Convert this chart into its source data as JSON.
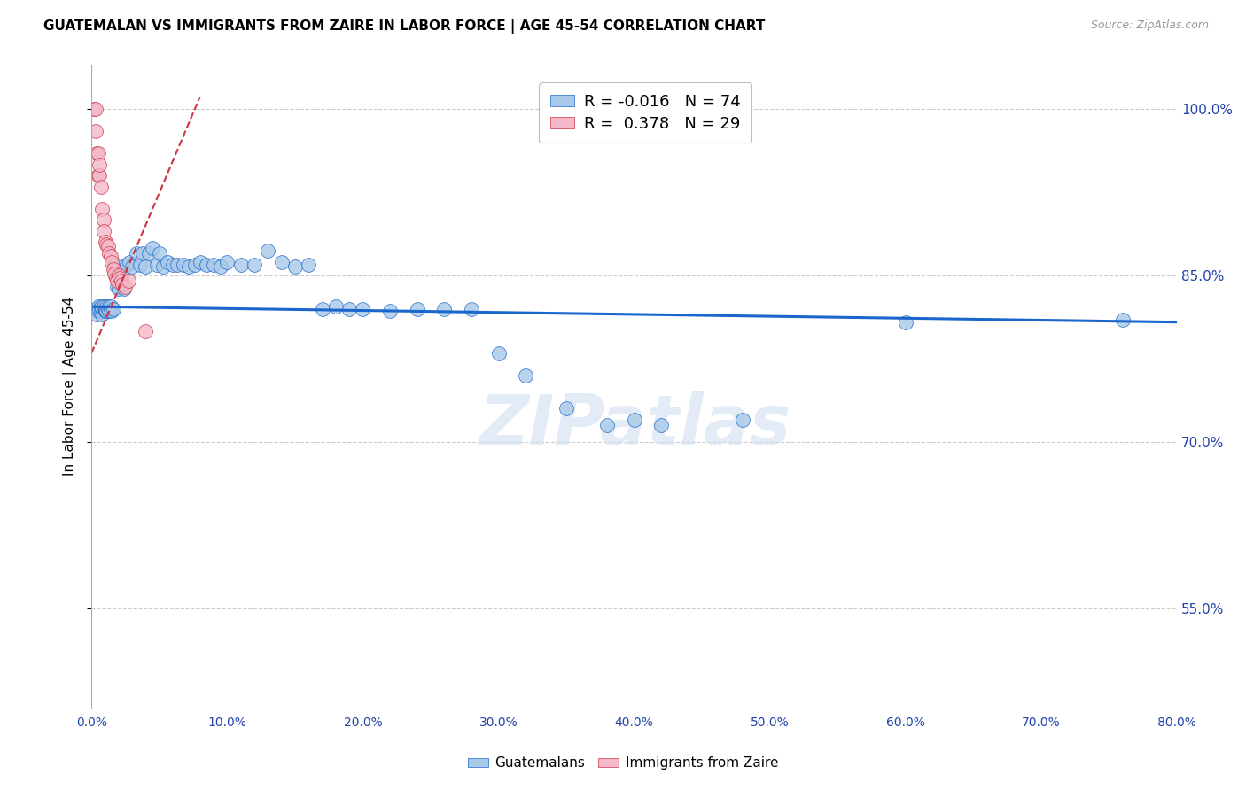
{
  "title": "GUATEMALAN VS IMMIGRANTS FROM ZAIRE IN LABOR FORCE | AGE 45-54 CORRELATION CHART",
  "source": "Source: ZipAtlas.com",
  "ylabel": "In Labor Force | Age 45-54",
  "xlim": [
    0.0,
    0.8
  ],
  "ylim": [
    0.46,
    1.04
  ],
  "xticks": [
    0.0,
    0.1,
    0.2,
    0.3,
    0.4,
    0.5,
    0.6,
    0.7,
    0.8
  ],
  "ytick_vals": [
    0.55,
    0.7,
    0.85,
    1.0
  ],
  "ytick_labels": [
    "55.0%",
    "70.0%",
    "85.0%",
    "100.0%"
  ],
  "legend_blue_r": "-0.016",
  "legend_blue_n": "74",
  "legend_pink_r": "0.378",
  "legend_pink_n": "29",
  "blue_color": "#a8c8e8",
  "pink_color": "#f4b8c8",
  "blue_line_color": "#1a66cc",
  "pink_line_color": "#cc3344",
  "grid_color": "#cccccc",
  "watermark": "ZIPatlas",
  "blue_trend_y0": 0.822,
  "blue_trend_y1": 0.808,
  "pink_trend_x0": 0.0,
  "pink_trend_y0": 0.78,
  "pink_trend_x1": 0.045,
  "pink_trend_y1": 0.91,
  "blue_x": [
    0.003,
    0.004,
    0.005,
    0.005,
    0.006,
    0.007,
    0.007,
    0.008,
    0.008,
    0.009,
    0.009,
    0.01,
    0.01,
    0.011,
    0.011,
    0.012,
    0.013,
    0.013,
    0.014,
    0.014,
    0.015,
    0.016,
    0.017,
    0.018,
    0.019,
    0.02,
    0.022,
    0.024,
    0.026,
    0.028,
    0.03,
    0.033,
    0.036,
    0.038,
    0.04,
    0.042,
    0.045,
    0.048,
    0.05,
    0.053,
    0.056,
    0.06,
    0.063,
    0.068,
    0.072,
    0.076,
    0.08,
    0.085,
    0.09,
    0.095,
    0.1,
    0.11,
    0.12,
    0.13,
    0.14,
    0.15,
    0.16,
    0.17,
    0.18,
    0.19,
    0.2,
    0.22,
    0.24,
    0.26,
    0.28,
    0.3,
    0.32,
    0.35,
    0.38,
    0.4,
    0.42,
    0.48,
    0.6,
    0.76
  ],
  "blue_y": [
    0.82,
    0.815,
    0.822,
    0.818,
    0.82,
    0.822,
    0.818,
    0.82,
    0.815,
    0.82,
    0.822,
    0.818,
    0.82,
    0.822,
    0.818,
    0.82,
    0.822,
    0.818,
    0.82,
    0.822,
    0.818,
    0.82,
    0.86,
    0.86,
    0.84,
    0.838,
    0.85,
    0.838,
    0.86,
    0.862,
    0.858,
    0.87,
    0.86,
    0.87,
    0.858,
    0.87,
    0.875,
    0.86,
    0.87,
    0.858,
    0.862,
    0.86,
    0.86,
    0.86,
    0.858,
    0.86,
    0.862,
    0.86,
    0.86,
    0.858,
    0.862,
    0.86,
    0.86,
    0.872,
    0.862,
    0.858,
    0.86,
    0.82,
    0.822,
    0.82,
    0.82,
    0.818,
    0.82,
    0.82,
    0.82,
    0.78,
    0.76,
    0.73,
    0.715,
    0.72,
    0.715,
    0.72,
    0.808,
    0.81
  ],
  "pink_x": [
    0.002,
    0.003,
    0.003,
    0.004,
    0.005,
    0.005,
    0.006,
    0.006,
    0.007,
    0.008,
    0.009,
    0.009,
    0.01,
    0.011,
    0.012,
    0.013,
    0.014,
    0.015,
    0.016,
    0.017,
    0.018,
    0.019,
    0.02,
    0.021,
    0.022,
    0.023,
    0.025,
    0.027,
    0.04
  ],
  "pink_y": [
    1.0,
    1.0,
    0.98,
    0.96,
    0.96,
    0.94,
    0.94,
    0.95,
    0.93,
    0.91,
    0.9,
    0.89,
    0.88,
    0.878,
    0.876,
    0.87,
    0.868,
    0.862,
    0.856,
    0.852,
    0.848,
    0.845,
    0.85,
    0.848,
    0.845,
    0.842,
    0.84,
    0.845,
    0.8
  ]
}
